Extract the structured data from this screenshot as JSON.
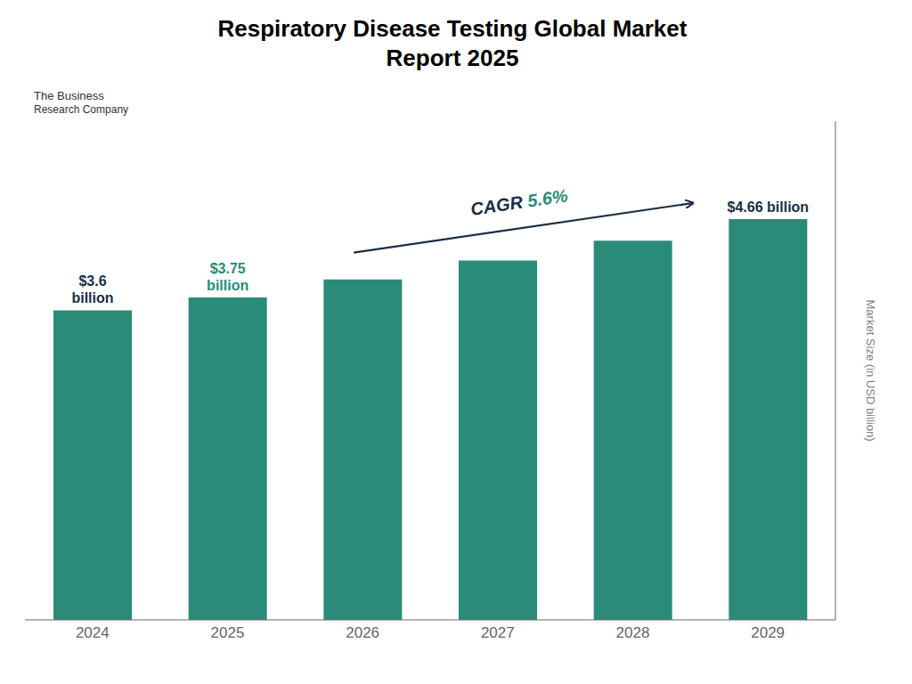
{
  "chart_data": {
    "type": "bar",
    "title": "Respiratory Disease Testing Global Market\nReport 2025",
    "categories": [
      "2024",
      "2025",
      "2026",
      "2027",
      "2028",
      "2029"
    ],
    "values": [
      3.6,
      3.75,
      3.96,
      4.18,
      4.41,
      4.66
    ],
    "color": "#2a8b78",
    "ylabel": "Market Size (in USD billion)",
    "ylim": [
      0,
      5.8
    ],
    "tick_labels": "x",
    "grid": false,
    "annotations": [
      {
        "text": "$3.6\nbillion",
        "category": "2024",
        "color": "#1a2e44"
      },
      {
        "text": "$3.75\nbillion",
        "category": "2025",
        "color": "#2a8b78"
      },
      {
        "text": "$4.66 billion",
        "category": "2029",
        "color": "#1a2e44"
      }
    ],
    "cagr": {
      "from": "2026",
      "to": "2029",
      "color": "#1a2e44",
      "parts": [
        {
          "text": "CAGR ",
          "color": "#1a2e44"
        },
        {
          "text": "5.6%",
          "color": "#2a8b78"
        }
      ]
    },
    "logo_text": [
      "The Business",
      "Research Company"
    ]
  }
}
